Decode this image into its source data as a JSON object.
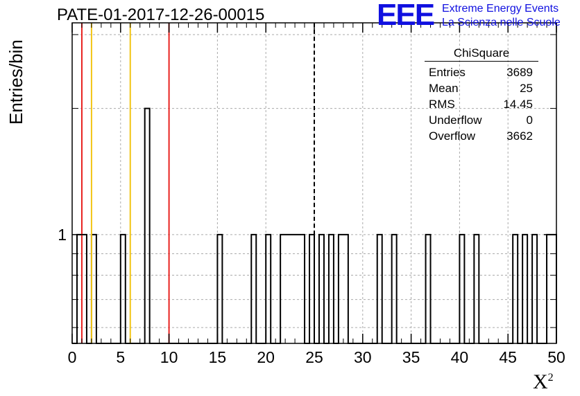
{
  "chart_data": {
    "type": "histogram",
    "title": "PATE-01-2017-12-26-00015",
    "xlabel": "X",
    "xlabel_superscript": "2",
    "ylabel": "Entries/bin",
    "xlim": [
      0,
      50
    ],
    "ylog": true,
    "ylim": [
      0.55,
      3.2
    ],
    "x_ticks": [
      0,
      5,
      10,
      15,
      20,
      25,
      30,
      35,
      40,
      45,
      50
    ],
    "y_ticks": [
      1
    ],
    "bin_width": 0.5,
    "bins": [
      {
        "x": 0.5,
        "y": 1
      },
      {
        "x": 1.0,
        "y": 1
      },
      {
        "x": 2.0,
        "y": 1
      },
      {
        "x": 5.0,
        "y": 1
      },
      {
        "x": 7.5,
        "y": 2
      },
      {
        "x": 15.0,
        "y": 1
      },
      {
        "x": 18.5,
        "y": 1
      },
      {
        "x": 20.0,
        "y": 1
      },
      {
        "x": 21.5,
        "y": 1
      },
      {
        "x": 22.0,
        "y": 1
      },
      {
        "x": 22.5,
        "y": 1
      },
      {
        "x": 23.0,
        "y": 1
      },
      {
        "x": 23.5,
        "y": 1
      },
      {
        "x": 24.5,
        "y": 1
      },
      {
        "x": 25.5,
        "y": 1
      },
      {
        "x": 26.5,
        "y": 1
      },
      {
        "x": 27.5,
        "y": 1
      },
      {
        "x": 28.0,
        "y": 1
      },
      {
        "x": 31.5,
        "y": 1
      },
      {
        "x": 33.0,
        "y": 1
      },
      {
        "x": 36.5,
        "y": 1
      },
      {
        "x": 40.0,
        "y": 1
      },
      {
        "x": 41.5,
        "y": 1
      },
      {
        "x": 45.5,
        "y": 1
      },
      {
        "x": 46.5,
        "y": 1
      },
      {
        "x": 47.5,
        "y": 1
      },
      {
        "x": 49.0,
        "y": 1
      },
      {
        "x": 49.5,
        "y": 1
      }
    ],
    "vertical_lines": [
      {
        "x": 1,
        "color": "#e8211f",
        "style": "solid"
      },
      {
        "x": 2,
        "color": "#f2c515",
        "style": "solid"
      },
      {
        "x": 6,
        "color": "#f2c515",
        "style": "solid"
      },
      {
        "x": 10,
        "color": "#e8211f",
        "style": "solid"
      },
      {
        "x": 25,
        "color": "#000000",
        "style": "dashed"
      }
    ],
    "grid": true,
    "stats": {
      "title": "ChiSquare",
      "rows": [
        {
          "label": "Entries",
          "value": "3689"
        },
        {
          "label": "Mean",
          "value": "25"
        },
        {
          "label": "RMS",
          "value": "14.45"
        },
        {
          "label": "Underflow",
          "value": "0"
        },
        {
          "label": "Overflow",
          "value": "3662"
        }
      ]
    }
  },
  "logo": {
    "mark": "EEE",
    "line1": "Extreme Energy Events",
    "line2": "La Scienza nelle Scuole"
  }
}
